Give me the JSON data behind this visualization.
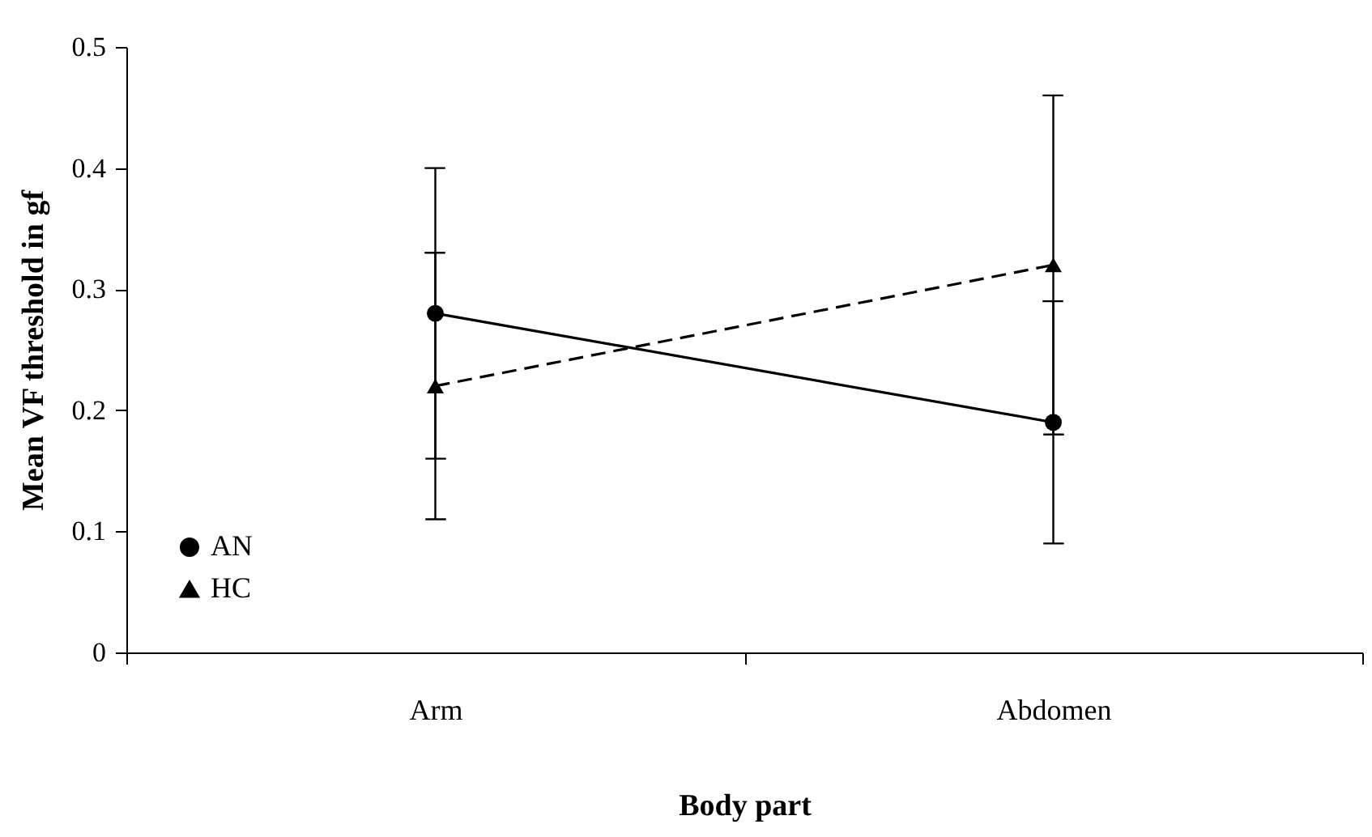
{
  "chart_data": {
    "type": "line",
    "xlabel": "Body part",
    "ylabel": "Mean VF threshold in gf",
    "categories": [
      "Arm",
      "Abdomen"
    ],
    "series": [
      {
        "name": "AN",
        "color": "#000000",
        "values": [
          0.28,
          0.19
        ],
        "errors": [
          0.12,
          0.1
        ],
        "marker": "circle",
        "line_style": "solid"
      },
      {
        "name": "HC",
        "color": "#000000",
        "values": [
          0.22,
          0.32
        ],
        "errors": [
          0.11,
          0.14
        ],
        "marker": "triangle",
        "line_style": "dashed"
      }
    ],
    "ylim": [
      0,
      0.5
    ],
    "yticks": [
      0,
      0.1,
      0.2,
      0.3,
      0.4,
      0.5
    ],
    "grid": false,
    "legend": "bottom left"
  }
}
